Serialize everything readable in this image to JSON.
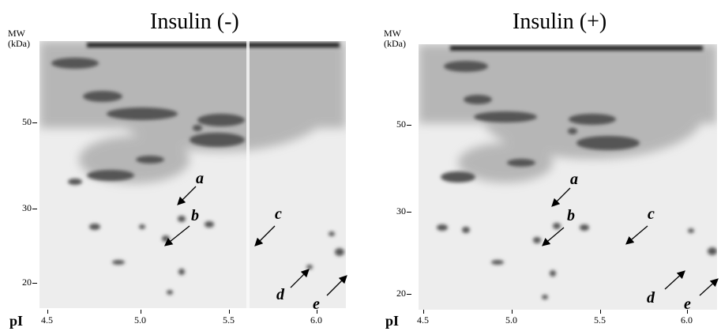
{
  "panels": [
    {
      "title": "Insulin (-)",
      "mw_label": [
        "MW",
        "(kDa)"
      ],
      "y_ticks": [
        "50",
        "30",
        "20"
      ],
      "x_axis_label": "pI",
      "x_ticks": [
        "4.5",
        "5.0",
        "5.5",
        "6.0"
      ],
      "spot_labels": [
        "a",
        "b",
        "c",
        "d",
        "e"
      ]
    },
    {
      "title": "Insulin (+)",
      "mw_label": [
        "MW",
        "(kDa)"
      ],
      "y_ticks": [
        "50",
        "30",
        "20"
      ],
      "x_axis_label": "pI",
      "x_ticks": [
        "4.5",
        "5.0",
        "5.5",
        "6.0"
      ],
      "spot_labels": [
        "a",
        "b",
        "c",
        "d",
        "e"
      ]
    }
  ],
  "colors": {
    "gel_background": "#e4e4e4",
    "spot": "#5a5a5a",
    "text": "#000000"
  }
}
